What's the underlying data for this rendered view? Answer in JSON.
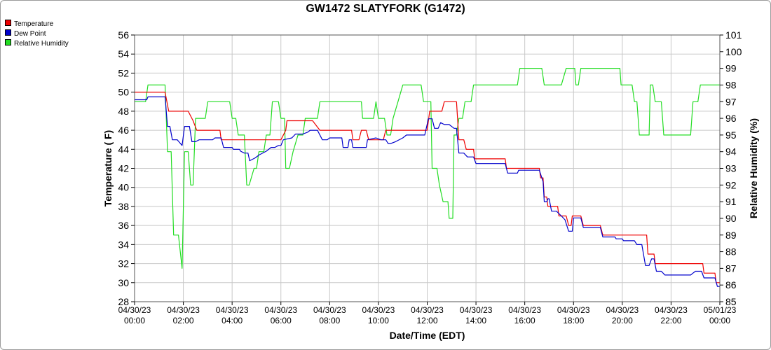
{
  "chart_data": {
    "type": "line",
    "title": "GW1472 SLATYFORK (G1472)",
    "xlabel": "Date/Time (EDT)",
    "ylabel": "Temperature ( F)",
    "y2label": "Relative Humidity (%)",
    "xlim": [
      0,
      24
    ],
    "ylim": [
      28,
      56
    ],
    "y2lim": [
      85,
      101
    ],
    "grid": true,
    "legend_position": "top-left",
    "y_ticks": [
      "28",
      "30",
      "32",
      "34",
      "36",
      "38",
      "40",
      "42",
      "44",
      "46",
      "48",
      "50",
      "52",
      "54",
      "56"
    ],
    "y2_ticks": [
      "85",
      "86",
      "87",
      "88",
      "89",
      "90",
      "91",
      "92",
      "93",
      "94",
      "95",
      "96",
      "97",
      "98",
      "99",
      "100",
      "101"
    ],
    "x_ticks": [
      {
        "x": 0,
        "date": "04/30/23",
        "time": "00:00"
      },
      {
        "x": 2,
        "date": "04/30/23",
        "time": "02:00"
      },
      {
        "x": 4,
        "date": "04/30/23",
        "time": "04:00"
      },
      {
        "x": 6,
        "date": "04/30/23",
        "time": "06:00"
      },
      {
        "x": 8,
        "date": "04/30/23",
        "time": "08:00"
      },
      {
        "x": 10,
        "date": "04/30/23",
        "time": "10:00"
      },
      {
        "x": 12,
        "date": "04/30/23",
        "time": "12:00"
      },
      {
        "x": 14,
        "date": "04/30/23",
        "time": "14:00"
      },
      {
        "x": 16,
        "date": "04/30/23",
        "time": "16:00"
      },
      {
        "x": 18,
        "date": "04/30/23",
        "time": "18:00"
      },
      {
        "x": 20,
        "date": "04/30/23",
        "time": "20:00"
      },
      {
        "x": 22,
        "date": "04/30/23",
        "time": "22:00"
      },
      {
        "x": 24,
        "date": "05/01/23",
        "time": "00:00"
      }
    ],
    "series": [
      {
        "name": "Temperature",
        "color": "#ee0000",
        "axis": "left",
        "points": [
          [
            0,
            50
          ],
          [
            1.25,
            50
          ],
          [
            1.4,
            48
          ],
          [
            2.2,
            48
          ],
          [
            2.4,
            47
          ],
          [
            2.55,
            46
          ],
          [
            3.5,
            46
          ],
          [
            3.55,
            45
          ],
          [
            6.0,
            45
          ],
          [
            6.2,
            46
          ],
          [
            6.25,
            47
          ],
          [
            7.3,
            47
          ],
          [
            7.6,
            46
          ],
          [
            8.2,
            46
          ],
          [
            8.9,
            46
          ],
          [
            8.95,
            45
          ],
          [
            9.2,
            45
          ],
          [
            9.3,
            46
          ],
          [
            9.5,
            46
          ],
          [
            9.6,
            45
          ],
          [
            10.2,
            45
          ],
          [
            10.3,
            46
          ],
          [
            12.0,
            46
          ],
          [
            12.1,
            48
          ],
          [
            12.6,
            48
          ],
          [
            12.7,
            49
          ],
          [
            13.2,
            49
          ],
          [
            13.3,
            45
          ],
          [
            13.5,
            45
          ],
          [
            13.6,
            44
          ],
          [
            13.9,
            44
          ],
          [
            13.95,
            43
          ],
          [
            15.2,
            43
          ],
          [
            15.25,
            42
          ],
          [
            16.6,
            42
          ],
          [
            16.65,
            41
          ],
          [
            16.75,
            41
          ],
          [
            16.8,
            39
          ],
          [
            16.9,
            39
          ],
          [
            16.95,
            38
          ],
          [
            17.35,
            38
          ],
          [
            17.4,
            37
          ],
          [
            17.7,
            37
          ],
          [
            17.8,
            36
          ],
          [
            17.9,
            36
          ],
          [
            17.95,
            37
          ],
          [
            18.3,
            37
          ],
          [
            18.4,
            36
          ],
          [
            19.1,
            36
          ],
          [
            19.2,
            35
          ],
          [
            20.6,
            35
          ],
          [
            21.0,
            35
          ],
          [
            21.05,
            33
          ],
          [
            21.3,
            33
          ],
          [
            21.35,
            32
          ],
          [
            23.0,
            32
          ],
          [
            23.3,
            32
          ],
          [
            23.35,
            31
          ],
          [
            23.8,
            31
          ],
          [
            23.85,
            30
          ],
          [
            24.0,
            30
          ]
        ]
      },
      {
        "name": "Dew Point",
        "color": "#0000cc",
        "axis": "left",
        "points": [
          [
            0,
            49.2
          ],
          [
            0.5,
            49.2
          ],
          [
            0.55,
            49.5
          ],
          [
            1.25,
            49.5
          ],
          [
            1.35,
            46.4
          ],
          [
            1.45,
            46.4
          ],
          [
            1.55,
            45
          ],
          [
            1.75,
            45
          ],
          [
            1.95,
            44.4
          ],
          [
            2.05,
            46.4
          ],
          [
            2.25,
            46.4
          ],
          [
            2.35,
            44.8
          ],
          [
            2.5,
            44.8
          ],
          [
            2.65,
            45
          ],
          [
            3.2,
            45
          ],
          [
            3.3,
            45.2
          ],
          [
            3.55,
            45.2
          ],
          [
            3.65,
            44.2
          ],
          [
            4.0,
            44.2
          ],
          [
            4.05,
            44
          ],
          [
            4.3,
            44
          ],
          [
            4.35,
            43.8
          ],
          [
            4.5,
            43.6
          ],
          [
            4.65,
            43.6
          ],
          [
            4.72,
            42.8
          ],
          [
            4.95,
            43.1
          ],
          [
            5.1,
            43.4
          ],
          [
            5.4,
            43.8
          ],
          [
            5.6,
            44.2
          ],
          [
            5.75,
            44.2
          ],
          [
            5.9,
            44.4
          ],
          [
            6.0,
            44.4
          ],
          [
            6.1,
            45
          ],
          [
            6.45,
            45.2
          ],
          [
            6.6,
            45.6
          ],
          [
            6.9,
            45.6
          ],
          [
            7.1,
            45.8
          ],
          [
            7.2,
            46
          ],
          [
            7.5,
            46
          ],
          [
            7.7,
            45
          ],
          [
            7.9,
            45
          ],
          [
            8.0,
            45.2
          ],
          [
            8.5,
            45.2
          ],
          [
            8.55,
            44.2
          ],
          [
            8.75,
            44.2
          ],
          [
            8.8,
            45
          ],
          [
            8.9,
            45
          ],
          [
            8.95,
            44.2
          ],
          [
            9.5,
            44.2
          ],
          [
            9.55,
            45
          ],
          [
            9.9,
            45.2
          ],
          [
            10.1,
            45
          ],
          [
            10.3,
            45
          ],
          [
            10.4,
            44.6
          ],
          [
            10.5,
            44.6
          ],
          [
            10.7,
            44.8
          ],
          [
            11.0,
            45.2
          ],
          [
            11.15,
            45.5
          ],
          [
            11.9,
            45.5
          ],
          [
            12.05,
            47.2
          ],
          [
            12.2,
            47.2
          ],
          [
            12.3,
            46.2
          ],
          [
            12.45,
            46.2
          ],
          [
            12.55,
            46.8
          ],
          [
            12.7,
            46.6
          ],
          [
            12.9,
            46.6
          ],
          [
            13.1,
            46.2
          ],
          [
            13.2,
            46.2
          ],
          [
            13.3,
            43.6
          ],
          [
            13.5,
            43.6
          ],
          [
            13.65,
            43.2
          ],
          [
            13.9,
            43.2
          ],
          [
            14.0,
            42.5
          ],
          [
            15.2,
            42.5
          ],
          [
            15.3,
            41.5
          ],
          [
            15.7,
            41.5
          ],
          [
            15.75,
            41.8
          ],
          [
            16.6,
            41.8
          ],
          [
            16.75,
            40.6
          ],
          [
            16.8,
            38.5
          ],
          [
            16.9,
            38.5
          ],
          [
            16.95,
            38.8
          ],
          [
            17.0,
            38.8
          ],
          [
            17.1,
            37.5
          ],
          [
            17.3,
            37.5
          ],
          [
            17.5,
            37
          ],
          [
            17.65,
            36.6
          ],
          [
            17.8,
            35.4
          ],
          [
            17.95,
            35.4
          ],
          [
            18.0,
            36.8
          ],
          [
            18.3,
            36.8
          ],
          [
            18.4,
            35.8
          ],
          [
            19.1,
            35.8
          ],
          [
            19.2,
            34.8
          ],
          [
            19.7,
            34.8
          ],
          [
            19.75,
            34.6
          ],
          [
            20.0,
            34.6
          ],
          [
            20.05,
            34.4
          ],
          [
            20.5,
            34.4
          ],
          [
            20.6,
            34
          ],
          [
            20.8,
            34
          ],
          [
            20.95,
            31.8
          ],
          [
            21.1,
            31.8
          ],
          [
            21.2,
            32.5
          ],
          [
            21.3,
            32.5
          ],
          [
            21.4,
            31.2
          ],
          [
            21.6,
            31.2
          ],
          [
            21.75,
            30.8
          ],
          [
            22.8,
            30.8
          ],
          [
            22.9,
            31
          ],
          [
            23.0,
            31.2
          ],
          [
            23.25,
            31.2
          ],
          [
            23.35,
            30.5
          ],
          [
            23.8,
            30.5
          ],
          [
            23.9,
            29.6
          ],
          [
            24.0,
            29.6
          ]
        ]
      },
      {
        "name": "Relative Humidity",
        "color": "#22dd22",
        "axis": "right",
        "points": [
          [
            0,
            97
          ],
          [
            0.45,
            97
          ],
          [
            0.55,
            98
          ],
          [
            1.25,
            98
          ],
          [
            1.35,
            94
          ],
          [
            1.5,
            94
          ],
          [
            1.6,
            89
          ],
          [
            1.8,
            89
          ],
          [
            1.95,
            87
          ],
          [
            2.05,
            94
          ],
          [
            2.2,
            94
          ],
          [
            2.3,
            92
          ],
          [
            2.4,
            92
          ],
          [
            2.5,
            96
          ],
          [
            2.9,
            96
          ],
          [
            3.0,
            97
          ],
          [
            3.9,
            97
          ],
          [
            4.0,
            96
          ],
          [
            4.15,
            96
          ],
          [
            4.25,
            95
          ],
          [
            4.5,
            95
          ],
          [
            4.6,
            92
          ],
          [
            4.7,
            92
          ],
          [
            4.9,
            93
          ],
          [
            5.0,
            93
          ],
          [
            5.1,
            94
          ],
          [
            5.3,
            94
          ],
          [
            5.4,
            95
          ],
          [
            5.55,
            95
          ],
          [
            5.65,
            97
          ],
          [
            5.9,
            97
          ],
          [
            6.0,
            96
          ],
          [
            6.15,
            96
          ],
          [
            6.2,
            93
          ],
          [
            6.35,
            93
          ],
          [
            6.5,
            94
          ],
          [
            6.7,
            95
          ],
          [
            6.9,
            95
          ],
          [
            7.0,
            96
          ],
          [
            7.5,
            96
          ],
          [
            7.6,
            97
          ],
          [
            9.3,
            97
          ],
          [
            9.35,
            96
          ],
          [
            9.8,
            96
          ],
          [
            9.9,
            97
          ],
          [
            10.0,
            96
          ],
          [
            10.25,
            96
          ],
          [
            10.35,
            95
          ],
          [
            10.5,
            95
          ],
          [
            10.6,
            96
          ],
          [
            10.8,
            97
          ],
          [
            11.0,
            98
          ],
          [
            11.75,
            98
          ],
          [
            11.85,
            97
          ],
          [
            12.15,
            97
          ],
          [
            12.2,
            93
          ],
          [
            12.4,
            93
          ],
          [
            12.5,
            92
          ],
          [
            12.65,
            91
          ],
          [
            12.85,
            91
          ],
          [
            12.9,
            90
          ],
          [
            13.05,
            90
          ],
          [
            13.1,
            95
          ],
          [
            13.2,
            95
          ],
          [
            13.3,
            96
          ],
          [
            13.45,
            96
          ],
          [
            13.55,
            97
          ],
          [
            13.8,
            97
          ],
          [
            13.9,
            98
          ],
          [
            15.7,
            98
          ],
          [
            15.8,
            99
          ],
          [
            16.7,
            99
          ],
          [
            16.8,
            98
          ],
          [
            17.5,
            98
          ],
          [
            17.7,
            99
          ],
          [
            18.05,
            99
          ],
          [
            18.1,
            98
          ],
          [
            18.2,
            98
          ],
          [
            18.3,
            99
          ],
          [
            19.9,
            99
          ],
          [
            19.95,
            98
          ],
          [
            20.4,
            98
          ],
          [
            20.5,
            97
          ],
          [
            20.6,
            97
          ],
          [
            20.7,
            95
          ],
          [
            21.1,
            95
          ],
          [
            21.15,
            98
          ],
          [
            21.25,
            98
          ],
          [
            21.35,
            97
          ],
          [
            21.6,
            97
          ],
          [
            21.7,
            95
          ],
          [
            22.8,
            95
          ],
          [
            22.9,
            97
          ],
          [
            23.1,
            97
          ],
          [
            23.2,
            98
          ],
          [
            24.0,
            98
          ]
        ]
      }
    ]
  }
}
